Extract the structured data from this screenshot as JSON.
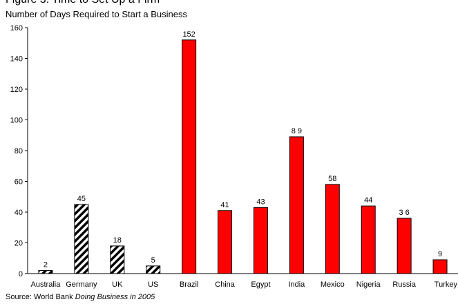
{
  "figure_title": "Figure 3. Time to Set Up a Firm",
  "source": {
    "prefix": "Source: World Bank ",
    "publication": "Doing Business in 2005"
  },
  "chart_data": {
    "type": "bar",
    "title": "Number of Days Required to Start a Business",
    "xlabel": "",
    "ylabel": "",
    "ylim": [
      0,
      160
    ],
    "yticks": [
      0,
      20,
      40,
      60,
      80,
      100,
      120,
      140,
      160
    ],
    "categories": [
      "Australia",
      "Germany",
      "UK",
      "US",
      "Brazil",
      "China",
      "Egypt",
      "India",
      "Mexico",
      "Nigeria",
      "Russia",
      "Turkey"
    ],
    "values": [
      2,
      45,
      18,
      5,
      152,
      41,
      43,
      89,
      58,
      44,
      36,
      9
    ],
    "data_labels": [
      "2",
      "45",
      "18",
      "5",
      "152",
      "41",
      "43",
      "8 9",
      "58",
      "44",
      "3 6",
      "9"
    ],
    "bar_styles": [
      "hatched",
      "hatched",
      "hatched",
      "hatched",
      "solid",
      "solid",
      "solid",
      "solid",
      "solid",
      "solid",
      "solid",
      "solid"
    ],
    "colors": {
      "solid": "#ff0000",
      "hatched": "#000000",
      "outline": "#000000"
    },
    "grid": false,
    "legend": "none"
  }
}
